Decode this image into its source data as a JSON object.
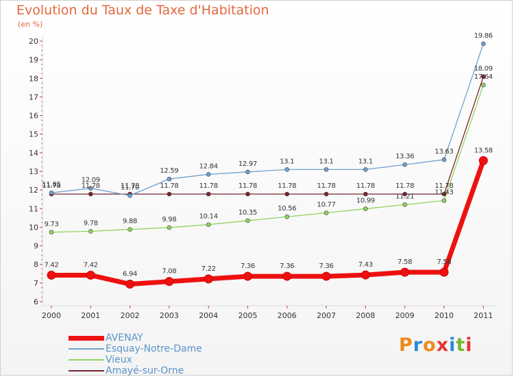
{
  "chart_data": {
    "type": "line",
    "title": "Evolution du Taux de Taxe d'Habitation",
    "ylabel": "(en %)",
    "xlabel": "",
    "ylim": [
      6,
      20
    ],
    "yticks": [
      "6",
      "7",
      "8",
      "9",
      "10",
      "11",
      "12",
      "13",
      "14",
      "15",
      "16",
      "17",
      "18",
      "19",
      "20"
    ],
    "categories": [
      "2000",
      "2001",
      "2002",
      "2003",
      "2004",
      "2005",
      "2006",
      "2007",
      "2008",
      "2009",
      "2010",
      "2011"
    ],
    "series": [
      {
        "name": "AVENAY",
        "color": "#ee1111",
        "values": [
          7.42,
          7.42,
          6.94,
          7.08,
          7.22,
          7.36,
          7.36,
          7.36,
          7.43,
          7.58,
          7.58,
          13.58
        ],
        "labels": [
          "7.42",
          "7.42",
          "6.94",
          "7.08",
          "7.22",
          "7.36",
          "7.36",
          "7.36",
          "7.43",
          "7.58",
          "7.58",
          "13.58"
        ]
      },
      {
        "name": "Esquay-Notre-Dame",
        "color": "#6fa0cd",
        "values": [
          11.85,
          12.09,
          11.7,
          12.59,
          12.84,
          12.97,
          13.1,
          13.1,
          13.1,
          13.36,
          13.63,
          19.86
        ],
        "labels": [
          "11.85",
          "12.09",
          "11.70",
          "12.59",
          "12.84",
          "12.97",
          "13.1",
          "13.1",
          "13.1",
          "13.36",
          "13.63",
          "19.86"
        ]
      },
      {
        "name": "Vieux",
        "color": "#8ed35c",
        "values": [
          9.73,
          9.78,
          9.88,
          9.98,
          10.14,
          10.35,
          10.56,
          10.77,
          10.99,
          11.21,
          11.43,
          17.64
        ],
        "labels": [
          "9.73",
          "9.78",
          "9.88",
          "9.98",
          "10.14",
          "10.35",
          "10.56",
          "10.77",
          "10.99",
          "11.21",
          "11.43",
          "17.64"
        ]
      },
      {
        "name": "Amayé-sur-Orne",
        "color": "#7a2230",
        "values": [
          11.78,
          11.78,
          11.78,
          11.78,
          11.78,
          11.78,
          11.78,
          11.78,
          11.78,
          11.78,
          11.78,
          18.09
        ],
        "labels": [
          "11.78",
          "11.78",
          "11.78",
          "11.78",
          "11.78",
          "11.78",
          "11.78",
          "11.78",
          "11.78",
          "11.78",
          "11.78",
          "18.09"
        ]
      }
    ],
    "legend_position": "bottom-left"
  },
  "branding": {
    "logo_letters": [
      "P",
      "r",
      "o",
      "x",
      "i",
      "t",
      "i"
    ],
    "logo_colors": [
      "#f08a1c",
      "#2a8ad6",
      "#f08a1c",
      "#e8322d",
      "#2a8ad6",
      "#78b832",
      "#e8322d"
    ]
  }
}
